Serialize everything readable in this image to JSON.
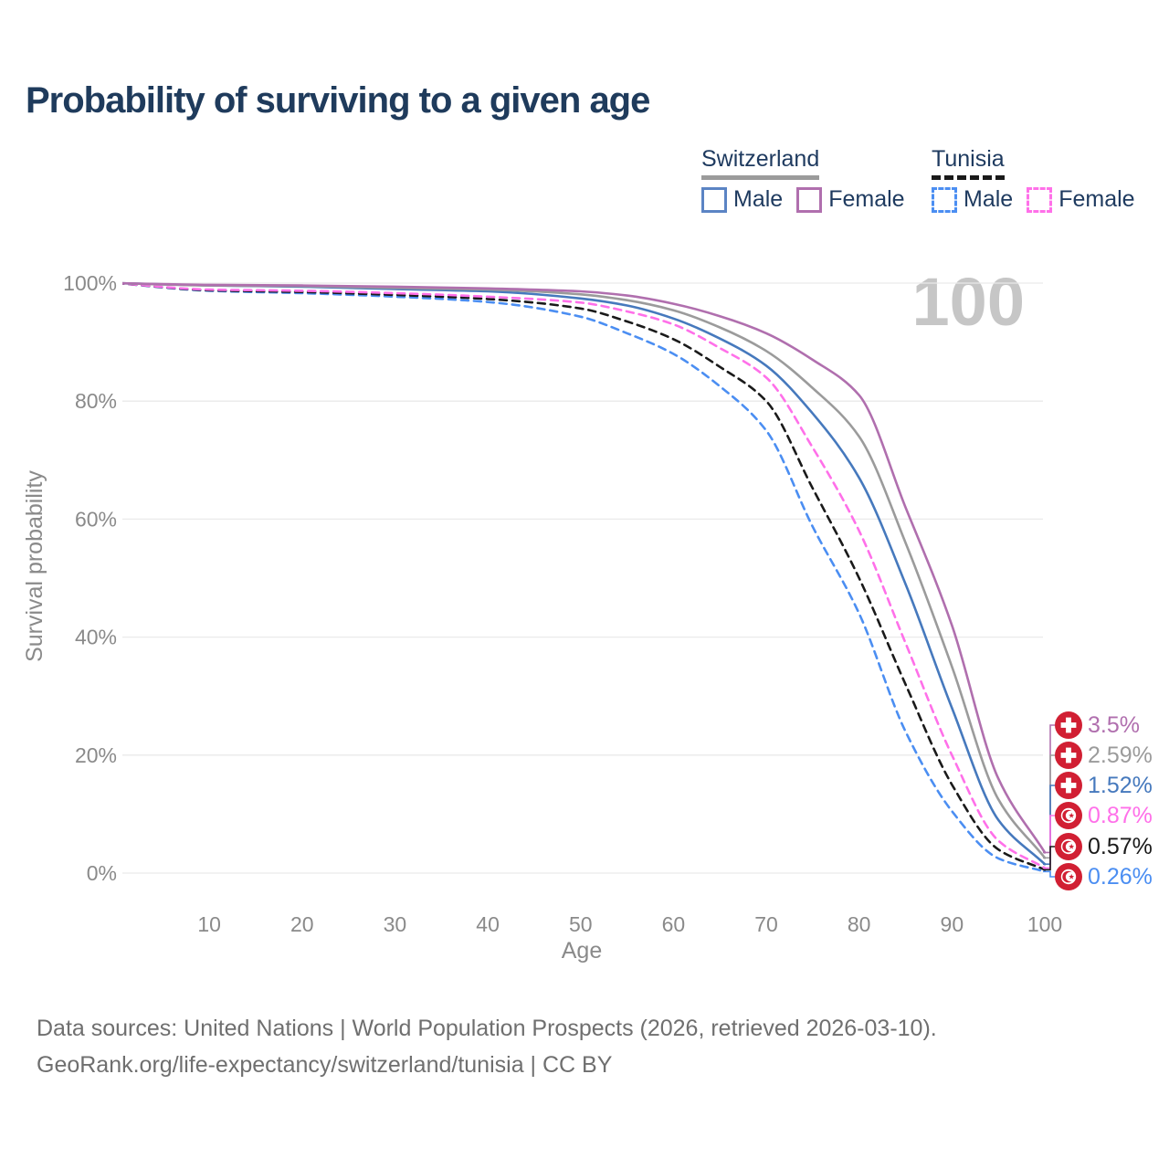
{
  "title": "Probability of surviving to a given age",
  "watermark": "100",
  "legend": {
    "groups": [
      {
        "name": "Switzerland",
        "underline_style": "solid",
        "underline_color": "#9b9b9b",
        "items": [
          {
            "label": "Male",
            "color": "#5b84c4",
            "dashed": false
          },
          {
            "label": "Female",
            "color": "#b06fae",
            "dashed": false
          }
        ]
      },
      {
        "name": "Tunisia",
        "underline_style": "dashed",
        "underline_color": "#1a1a1a",
        "items": [
          {
            "label": "Male",
            "color": "#4b8ef2",
            "dashed": true
          },
          {
            "label": "Female",
            "color": "#ff70e9",
            "dashed": true
          }
        ]
      }
    ]
  },
  "chart_data": {
    "type": "line",
    "title": "Probability of surviving to a given age",
    "xlabel": "Age",
    "ylabel": "Survival probability",
    "xlim": [
      0,
      100
    ],
    "ylim": [
      0,
      100
    ],
    "grid": "horizontal",
    "x_ticks": [
      10,
      20,
      30,
      40,
      50,
      60,
      70,
      80,
      90,
      100
    ],
    "y_ticks": [
      {
        "value": 0,
        "label": "0%"
      },
      {
        "value": 20,
        "label": "20%"
      },
      {
        "value": 40,
        "label": "40%"
      },
      {
        "value": 60,
        "label": "60%"
      },
      {
        "value": 80,
        "label": "80%"
      },
      {
        "value": 100,
        "label": "100%"
      }
    ],
    "x": [
      0,
      10,
      20,
      30,
      40,
      50,
      55,
      60,
      65,
      70,
      75,
      80,
      85,
      90,
      95,
      100
    ],
    "series": [
      {
        "name": "Switzerland Female",
        "country": "Switzerland",
        "sex": "Female",
        "flag": "switzerland",
        "color": "#b06fae",
        "dashed": false,
        "end_label": "3.5%",
        "values": [
          100,
          99.7,
          99.6,
          99.4,
          99.1,
          98.6,
          97.9,
          96.5,
          94.4,
          91.5,
          87,
          81,
          62,
          42,
          16,
          3.5
        ]
      },
      {
        "name": "Switzerland Total",
        "country": "Switzerland",
        "sex": "Total",
        "flag": "switzerland",
        "color": "#9b9b9b",
        "dashed": false,
        "end_label": "2.59%",
        "values": [
          100,
          99.6,
          99.5,
          99.2,
          98.9,
          98.1,
          97.1,
          95.4,
          92.5,
          88.5,
          82.2,
          74,
          56,
          35,
          12.5,
          2.59
        ]
      },
      {
        "name": "Switzerland Male",
        "country": "Switzerland",
        "sex": "Male",
        "flag": "switzerland",
        "color": "#4679bd",
        "dashed": false,
        "end_label": "1.52%",
        "values": [
          100,
          99.6,
          99.4,
          99,
          98.6,
          97.4,
          96.2,
          94,
          90.6,
          86,
          77.9,
          67,
          49,
          28,
          9,
          1.52
        ]
      },
      {
        "name": "Tunisia Female",
        "country": "Tunisia",
        "sex": "Female",
        "flag": "tunisia",
        "color": "#ff70e9",
        "dashed": true,
        "end_label": "0.87%",
        "values": [
          100,
          98.9,
          98.7,
          98.3,
          97.7,
          96.7,
          95.2,
          93,
          89,
          84,
          72.1,
          58,
          39,
          20,
          5.5,
          0.87
        ]
      },
      {
        "name": "Tunisia Total",
        "country": "Tunisia",
        "sex": "Total",
        "flag": "tunisia",
        "color": "#1a1a1a",
        "dashed": true,
        "end_label": "0.57%",
        "values": [
          100,
          98.8,
          98.5,
          98,
          97.3,
          95.7,
          93.5,
          90.5,
          85.8,
          80,
          65.2,
          50,
          32,
          15,
          4,
          0.57
        ]
      },
      {
        "name": "Tunisia Male",
        "country": "Tunisia",
        "sex": "Male",
        "flag": "tunisia",
        "color": "#4b8ef2",
        "dashed": true,
        "end_label": "0.26%",
        "values": [
          100,
          98.7,
          98.3,
          97.7,
          96.8,
          94.3,
          91.5,
          88,
          82.5,
          75,
          58.7,
          44,
          24,
          10.5,
          2.5,
          0.26
        ]
      }
    ]
  },
  "footer": {
    "line1": "Data sources: United Nations | World Population Prospects (2026, retrieved 2026-03-10).",
    "line2": "GeoRank.org/life-expectancy/switzerland/tunisia | CC BY"
  },
  "colors": {
    "title": "#1f3b5c",
    "axis_text": "#8a8a8a",
    "gridline": "#eaeaea",
    "watermark": "#c6c6c6",
    "flag_red": "#d11f33"
  }
}
